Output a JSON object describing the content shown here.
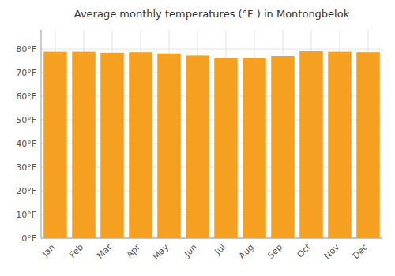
{
  "chart_data": {
    "type": "bar",
    "title": "Average monthly temperatures (°F ) in Montongbelok",
    "categories": [
      "Jan",
      "Feb",
      "Mar",
      "Apr",
      "May",
      "Jun",
      "Jul",
      "Aug",
      "Sep",
      "Oct",
      "Nov",
      "Dec"
    ],
    "values": [
      78.8,
      78.8,
      78.4,
      78.6,
      78.1,
      77.2,
      76.1,
      76.1,
      77.0,
      79.0,
      78.8,
      78.6
    ],
    "color": "#F5A020",
    "ylim": [
      0,
      88
    ],
    "yticks": [
      {
        "value": 0,
        "label": "0°F"
      },
      {
        "value": 10,
        "label": "10°F"
      },
      {
        "value": 20,
        "label": "20°F"
      },
      {
        "value": 30,
        "label": "30°F"
      },
      {
        "value": 40,
        "label": "40°F"
      },
      {
        "value": 50,
        "label": "50°F"
      },
      {
        "value": 60,
        "label": "60°F"
      },
      {
        "value": 70,
        "label": "70°F"
      },
      {
        "value": 80,
        "label": "80°F"
      }
    ],
    "grid": true
  }
}
